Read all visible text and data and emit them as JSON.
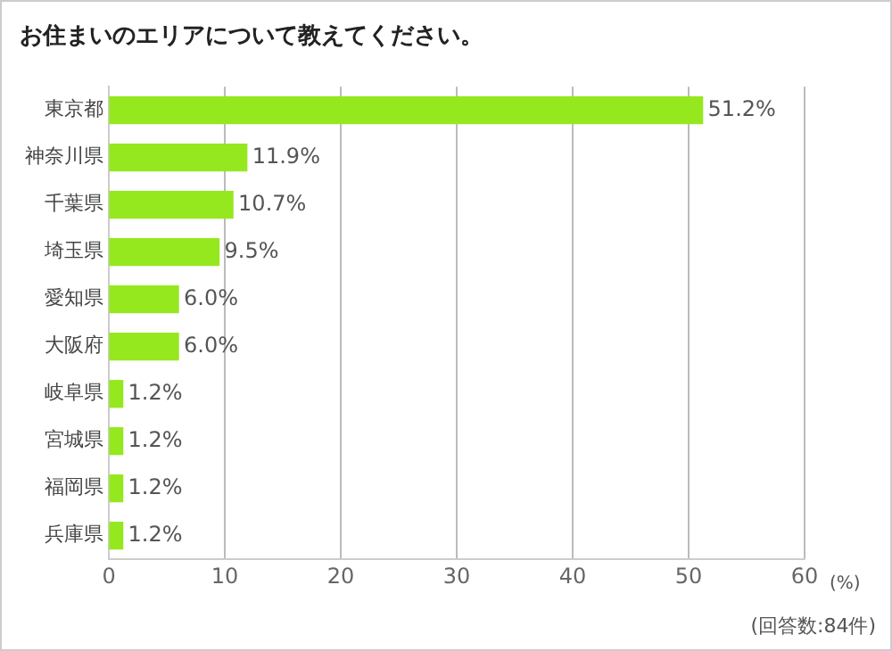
{
  "chart_data": {
    "type": "bar",
    "orientation": "horizontal",
    "title": "お住まいのエリアについて教えてください。",
    "categories": [
      "東京都",
      "神奈川県",
      "千葉県",
      "埼玉県",
      "愛知県",
      "大阪府",
      "岐阜県",
      "宮城県",
      "福岡県",
      "兵庫県"
    ],
    "values": [
      51.2,
      11.9,
      10.7,
      9.5,
      6.0,
      6.0,
      1.2,
      1.2,
      1.2,
      1.2
    ],
    "value_labels": [
      "51.2%",
      "11.9%",
      "10.7%",
      "9.5%",
      "6.0%",
      "6.0%",
      "1.2%",
      "1.2%",
      "1.2%",
      "1.2%"
    ],
    "color": "#95e81d",
    "xlim": [
      0,
      60
    ],
    "xticks": [
      0,
      10,
      20,
      30,
      40,
      50,
      60
    ],
    "xlabel": "(%)",
    "grid": "x",
    "legend": false,
    "annotations": [
      "(回答数:84件)"
    ]
  }
}
